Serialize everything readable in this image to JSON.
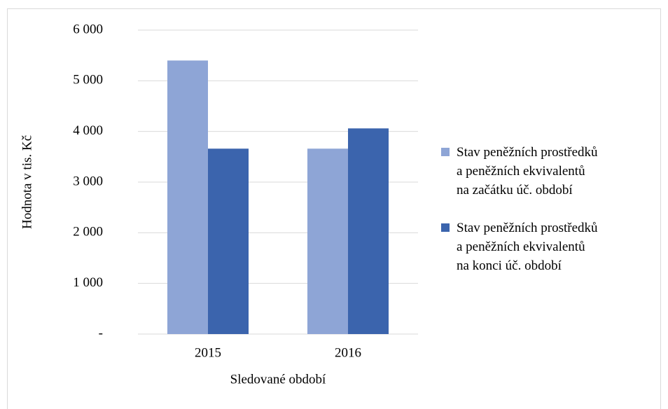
{
  "chart_data": {
    "type": "bar",
    "categories": [
      "2015",
      "2016"
    ],
    "series": [
      {
        "name": "Stav peněžních prostředků\na peněžních ekvivalentů\nna začátku úč. období",
        "color": "#8ea5d6",
        "values": [
          5400,
          3660
        ]
      },
      {
        "name": "Stav peněžních prostředků\na peněžních ekvivalentů\nna konci úč. období",
        "color": "#3b64ad",
        "values": [
          3660,
          4060
        ]
      }
    ],
    "ylim": [
      0,
      6000
    ],
    "yticks": [
      {
        "value": 0,
        "label": "-"
      },
      {
        "value": 1000,
        "label": "1 000"
      },
      {
        "value": 2000,
        "label": "2 000"
      },
      {
        "value": 3000,
        "label": "3 000"
      },
      {
        "value": 4000,
        "label": "4 000"
      },
      {
        "value": 5000,
        "label": "5 000"
      },
      {
        "value": 6000,
        "label": "6 000"
      }
    ],
    "y_label": "Hodnota v tis. Kč",
    "x_label": "Sledované období",
    "grid": true,
    "legend": "right"
  }
}
